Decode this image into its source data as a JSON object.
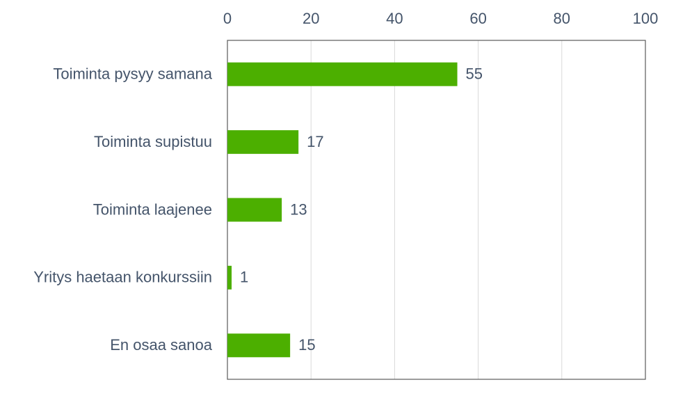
{
  "chart_data": {
    "type": "bar",
    "orientation": "horizontal",
    "categories": [
      "Toiminta pysyy samana",
      "Toiminta supistuu",
      "Toiminta laajenee",
      "Yritys haetaan konkurssiin",
      "En osaa sanoa"
    ],
    "values": [
      55,
      17,
      13,
      1,
      15
    ],
    "color": "#4caf00",
    "xlim": [
      0,
      100
    ],
    "xticks": [
      0,
      20,
      40,
      60,
      80,
      100
    ],
    "grid": true
  }
}
